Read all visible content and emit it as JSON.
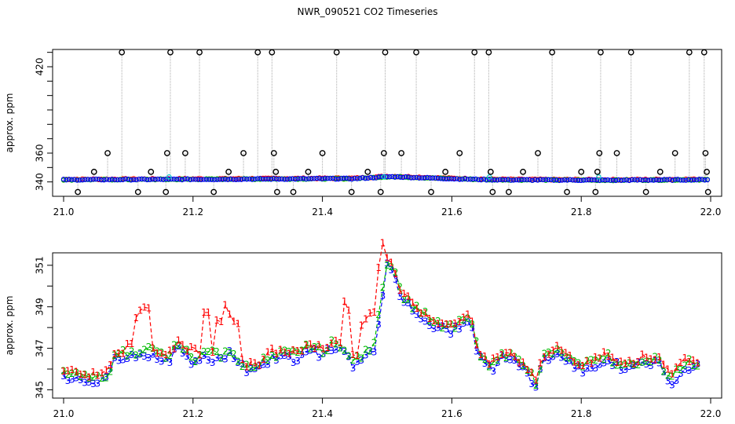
{
  "title": "NWR_090521  CO2 Timeseries",
  "chart_data": [
    {
      "type": "scatter",
      "panel": "top",
      "xlabel": "",
      "ylabel": "approx. ppm",
      "xlim": [
        21.0,
        22.0
      ],
      "ylim": [
        330,
        432
      ],
      "x_ticks": [
        "21.0",
        "21.2",
        "21.4",
        "21.6",
        "21.8",
        "22.0"
      ],
      "y_ticks": [
        "340",
        "360",
        "420"
      ],
      "y_minor": [
        350,
        370,
        380,
        390,
        400,
        410,
        430
      ],
      "colors": {
        "s1": "#ff0000",
        "s2": "#00bb00",
        "s3": "#0000ff",
        "flag": "#00cccc",
        "outlier": "#000000",
        "stem": "#aaaaaa"
      },
      "outliers": [
        {
          "x": 21.022,
          "y": 333
        },
        {
          "x": 21.047,
          "y": 347
        },
        {
          "x": 21.068,
          "y": 360
        },
        {
          "x": 21.09,
          "y": 430
        },
        {
          "x": 21.115,
          "y": 333
        },
        {
          "x": 21.135,
          "y": 347
        },
        {
          "x": 21.158,
          "y": 333
        },
        {
          "x": 21.16,
          "y": 360
        },
        {
          "x": 21.165,
          "y": 430
        },
        {
          "x": 21.188,
          "y": 360
        },
        {
          "x": 21.21,
          "y": 430
        },
        {
          "x": 21.232,
          "y": 333
        },
        {
          "x": 21.255,
          "y": 347
        },
        {
          "x": 21.278,
          "y": 360
        },
        {
          "x": 21.3,
          "y": 430
        },
        {
          "x": 21.322,
          "y": 430
        },
        {
          "x": 21.325,
          "y": 360
        },
        {
          "x": 21.328,
          "y": 347
        },
        {
          "x": 21.33,
          "y": 333
        },
        {
          "x": 21.355,
          "y": 333
        },
        {
          "x": 21.378,
          "y": 347
        },
        {
          "x": 21.4,
          "y": 360
        },
        {
          "x": 21.422,
          "y": 430
        },
        {
          "x": 21.445,
          "y": 333
        },
        {
          "x": 21.47,
          "y": 347
        },
        {
          "x": 21.49,
          "y": 333
        },
        {
          "x": 21.495,
          "y": 360
        },
        {
          "x": 21.497,
          "y": 430
        },
        {
          "x": 21.522,
          "y": 360
        },
        {
          "x": 21.545,
          "y": 430
        },
        {
          "x": 21.568,
          "y": 333
        },
        {
          "x": 21.59,
          "y": 347
        },
        {
          "x": 21.612,
          "y": 360
        },
        {
          "x": 21.635,
          "y": 430
        },
        {
          "x": 21.657,
          "y": 430
        },
        {
          "x": 21.66,
          "y": 347
        },
        {
          "x": 21.663,
          "y": 333
        },
        {
          "x": 21.688,
          "y": 333
        },
        {
          "x": 21.71,
          "y": 347
        },
        {
          "x": 21.733,
          "y": 360
        },
        {
          "x": 21.755,
          "y": 430
        },
        {
          "x": 21.778,
          "y": 333
        },
        {
          "x": 21.8,
          "y": 347
        },
        {
          "x": 21.822,
          "y": 333
        },
        {
          "x": 21.825,
          "y": 347
        },
        {
          "x": 21.828,
          "y": 360
        },
        {
          "x": 21.83,
          "y": 430
        },
        {
          "x": 21.855,
          "y": 360
        },
        {
          "x": 21.877,
          "y": 430
        },
        {
          "x": 21.9,
          "y": 333
        },
        {
          "x": 21.922,
          "y": 347
        },
        {
          "x": 21.945,
          "y": 360
        },
        {
          "x": 21.967,
          "y": 430
        },
        {
          "x": 21.99,
          "y": 430
        },
        {
          "x": 21.992,
          "y": 360
        },
        {
          "x": 21.994,
          "y": 347
        },
        {
          "x": 21.996,
          "y": 333
        }
      ]
    },
    {
      "type": "line",
      "panel": "bottom",
      "xlabel": "",
      "ylabel": "approx. ppm",
      "xlim": [
        21.0,
        22.0
      ],
      "ylim": [
        344.6,
        351.6
      ],
      "x_ticks": [
        "21.0",
        "21.2",
        "21.4",
        "21.6",
        "21.8",
        "22.0"
      ],
      "y_ticks": [
        "345",
        "347",
        "349",
        "351"
      ],
      "y_minor": [
        346,
        348,
        350
      ],
      "series_symbols": [
        "1",
        "2",
        "3"
      ],
      "series_colors": [
        "#ff0000",
        "#00bb00",
        "#0000ff"
      ],
      "base_series": {
        "x": [
          21.0,
          21.02,
          21.04,
          21.06,
          21.07,
          21.08,
          21.09,
          21.1,
          21.11,
          21.12,
          21.14,
          21.15,
          21.16,
          21.17,
          21.18,
          21.2,
          21.22,
          21.24,
          21.26,
          21.28,
          21.3,
          21.32,
          21.34,
          21.36,
          21.38,
          21.4,
          21.42,
          21.44,
          21.45,
          21.47,
          21.48,
          21.5,
          21.51,
          21.52,
          21.54,
          21.56,
          21.58,
          21.6,
          21.62,
          21.63,
          21.64,
          21.66,
          21.68,
          21.7,
          21.72,
          21.73,
          21.74,
          21.76,
          21.78,
          21.8,
          21.82,
          21.84,
          21.86,
          21.88,
          21.9,
          21.92,
          21.94,
          21.96,
          21.98
        ],
        "y": [
          345.8,
          345.7,
          345.6,
          345.5,
          345.8,
          346.6,
          346.7,
          346.7,
          346.6,
          346.9,
          346.8,
          346.7,
          346.4,
          346.9,
          347.2,
          346.3,
          346.7,
          346.6,
          346.9,
          346.1,
          346.0,
          346.7,
          346.7,
          346.6,
          347.1,
          346.8,
          347.3,
          346.6,
          346.3,
          346.8,
          347.1,
          351.1,
          350.8,
          349.7,
          349.0,
          348.5,
          348.1,
          347.9,
          348.3,
          348.5,
          346.8,
          346.1,
          346.7,
          346.4,
          345.8,
          345.2,
          346.5,
          346.9,
          346.4,
          346.1,
          346.3,
          346.6,
          346.2,
          346.2,
          346.5,
          346.3,
          345.5,
          346.3,
          346.2
        ]
      },
      "series1_offsets": {
        "x": [
          21.1,
          21.115,
          21.12,
          21.13,
          21.2,
          21.22,
          21.24,
          21.25,
          21.26,
          21.27,
          21.44,
          21.46,
          21.47,
          21.48,
          21.49
        ],
        "dy": [
          0.4,
          1.8,
          1.9,
          1.9,
          0.6,
          1.8,
          1.6,
          2.1,
          1.5,
          1.5,
          2.2,
          1.5,
          1.6,
          1.4,
          2.2
        ]
      }
    }
  ]
}
